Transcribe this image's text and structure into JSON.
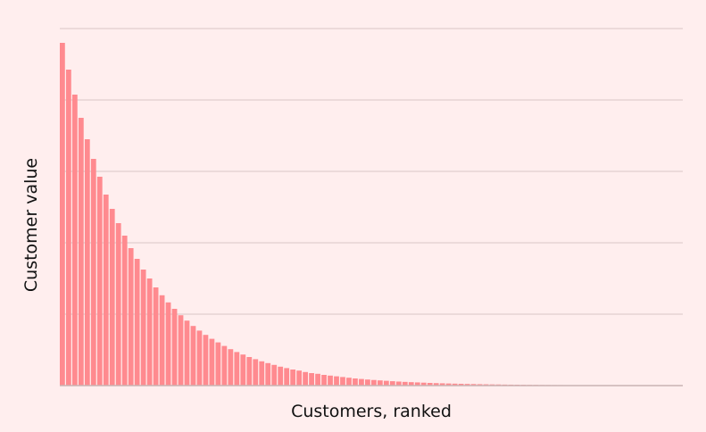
{
  "chart_data": {
    "type": "bar",
    "xlabel": "Customers, ranked",
    "ylabel": "Customer value",
    "ylim": [
      0,
      100
    ],
    "grid": true,
    "gridlines": [
      0,
      20,
      40,
      60,
      80,
      100
    ],
    "legend": "none",
    "colors": {
      "background": "#ffeeee",
      "bar": "#ff8a8f",
      "grid": "#d8c6c6",
      "baseline": "#c8b4b4",
      "text": "#111111"
    },
    "values": [
      96,
      88.5,
      81.5,
      75,
      69,
      63.5,
      58.5,
      53.5,
      49.5,
      45.5,
      42,
      38.5,
      35.5,
      32.5,
      30,
      27.5,
      25.3,
      23.3,
      21.5,
      19.7,
      18.2,
      16.7,
      15.4,
      14.2,
      13.1,
      12.1,
      11.1,
      10.2,
      9.4,
      8.7,
      8.0,
      7.4,
      6.8,
      6.3,
      5.8,
      5.3,
      4.9,
      4.5,
      4.2,
      3.8,
      3.5,
      3.3,
      3.0,
      2.8,
      2.6,
      2.4,
      2.2,
      2.0,
      1.85,
      1.7,
      1.57,
      1.45,
      1.34,
      1.23,
      1.13,
      1.04,
      0.96,
      0.89,
      0.82,
      0.75,
      0.69,
      0.64,
      0.59,
      0.54,
      0.5,
      0.46,
      0.43,
      0.39,
      0.36,
      0.33,
      0.31,
      0.28,
      0.26,
      0.24,
      0.22,
      0.2,
      0.19,
      0.17,
      0.16,
      0.15,
      0.14,
      0.13,
      0.12,
      0.11,
      0.1,
      0.09,
      0.08,
      0.08,
      0.07,
      0.07,
      0.06,
      0.06,
      0.05,
      0.05,
      0.04,
      0.04,
      0.04,
      0.03,
      0.03,
      0.03
    ]
  }
}
